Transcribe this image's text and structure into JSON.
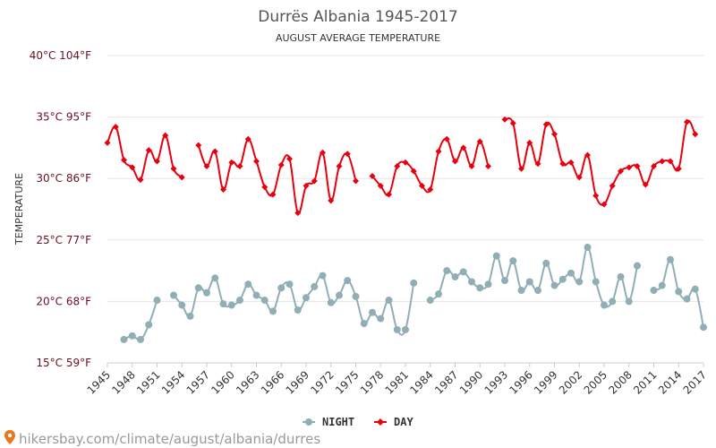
{
  "chart_data": {
    "type": "line",
    "title": "Durrës Albania 1945-2017",
    "subtitle": "AUGUST AVERAGE TEMPERATURE",
    "ylabel": "TEMPERATURE",
    "ylim": [
      15,
      40
    ],
    "y_ticks": [
      {
        "value": 15,
        "label": "15°C 59°F"
      },
      {
        "value": 20,
        "label": "20°C 68°F"
      },
      {
        "value": 25,
        "label": "25°C 77°F"
      },
      {
        "value": 30,
        "label": "30°C 86°F"
      },
      {
        "value": 35,
        "label": "35°C 95°F"
      },
      {
        "value": 40,
        "label": "40°C 104°F"
      }
    ],
    "x_range": [
      1945,
      2017
    ],
    "x_ticks": [
      1945,
      1948,
      1951,
      1954,
      1957,
      1960,
      1963,
      1966,
      1969,
      1972,
      1975,
      1978,
      1981,
      1984,
      1987,
      1990,
      1993,
      1996,
      1999,
      2002,
      2005,
      2008,
      2011,
      2014,
      2017
    ],
    "grid": true,
    "legend_position": "bottom",
    "series": [
      {
        "name": "NIGHT",
        "color": "#90aeb5",
        "marker": "circle",
        "points": [
          [
            1947,
            16.9
          ],
          [
            1948,
            17.2
          ],
          [
            1949,
            16.9
          ],
          [
            1950,
            18.1
          ],
          [
            1951,
            20.1
          ],
          [
            1953,
            20.5
          ],
          [
            1954,
            19.7
          ],
          [
            1955,
            18.8
          ],
          [
            1956,
            21.1
          ],
          [
            1957,
            20.7
          ],
          [
            1958,
            21.9
          ],
          [
            1959,
            19.8
          ],
          [
            1960,
            19.7
          ],
          [
            1961,
            20.1
          ],
          [
            1962,
            21.4
          ],
          [
            1963,
            20.5
          ],
          [
            1964,
            20.1
          ],
          [
            1965,
            19.2
          ],
          [
            1966,
            21.1
          ],
          [
            1967,
            21.4
          ],
          [
            1968,
            19.3
          ],
          [
            1969,
            20.3
          ],
          [
            1970,
            21.2
          ],
          [
            1971,
            22.1
          ],
          [
            1972,
            19.9
          ],
          [
            1973,
            20.5
          ],
          [
            1974,
            21.7
          ],
          [
            1975,
            20.4
          ],
          [
            1976,
            18.2
          ],
          [
            1977,
            19.1
          ],
          [
            1978,
            18.6
          ],
          [
            1979,
            20.1
          ],
          [
            1980,
            17.7
          ],
          [
            1981,
            17.7
          ],
          [
            1982,
            21.5
          ],
          [
            1984,
            20.1
          ],
          [
            1985,
            20.6
          ],
          [
            1986,
            22.5
          ],
          [
            1987,
            22.0
          ],
          [
            1988,
            22.4
          ],
          [
            1989,
            21.6
          ],
          [
            1990,
            21.1
          ],
          [
            1991,
            21.4
          ],
          [
            1992,
            23.7
          ],
          [
            1993,
            21.7
          ],
          [
            1994,
            23.3
          ],
          [
            1995,
            20.9
          ],
          [
            1996,
            21.6
          ],
          [
            1997,
            20.9
          ],
          [
            1998,
            23.1
          ],
          [
            1999,
            21.3
          ],
          [
            2000,
            21.8
          ],
          [
            2001,
            22.3
          ],
          [
            2002,
            21.6
          ],
          [
            2003,
            24.4
          ],
          [
            2004,
            21.6
          ],
          [
            2005,
            19.7
          ],
          [
            2006,
            20.0
          ],
          [
            2007,
            22.0
          ],
          [
            2008,
            20.0
          ],
          [
            2009,
            22.9
          ],
          [
            2011,
            20.9
          ],
          [
            2012,
            21.3
          ],
          [
            2013,
            23.4
          ],
          [
            2014,
            20.8
          ],
          [
            2015,
            20.2
          ],
          [
            2016,
            21.0
          ],
          [
            2017,
            17.9
          ]
        ]
      },
      {
        "name": "DAY",
        "color": "#e8000f",
        "marker": "diamond",
        "points": [
          [
            1945,
            32.9
          ],
          [
            1946,
            34.2
          ],
          [
            1947,
            31.5
          ],
          [
            1948,
            30.9
          ],
          [
            1949,
            29.9
          ],
          [
            1950,
            32.3
          ],
          [
            1951,
            31.4
          ],
          [
            1952,
            33.5
          ],
          [
            1953,
            30.8
          ],
          [
            1954,
            30.1
          ],
          [
            1956,
            32.7
          ],
          [
            1957,
            31.0
          ],
          [
            1958,
            32.2
          ],
          [
            1959,
            29.1
          ],
          [
            1960,
            31.3
          ],
          [
            1961,
            31.0
          ],
          [
            1962,
            33.2
          ],
          [
            1963,
            31.4
          ],
          [
            1964,
            29.3
          ],
          [
            1965,
            28.7
          ],
          [
            1966,
            31.1
          ],
          [
            1967,
            31.6
          ],
          [
            1968,
            27.2
          ],
          [
            1969,
            29.4
          ],
          [
            1970,
            29.8
          ],
          [
            1971,
            32.1
          ],
          [
            1972,
            28.2
          ],
          [
            1973,
            31.0
          ],
          [
            1974,
            32.0
          ],
          [
            1975,
            29.8
          ],
          [
            1977,
            30.2
          ],
          [
            1978,
            29.4
          ],
          [
            1979,
            28.7
          ],
          [
            1980,
            31.0
          ],
          [
            1981,
            31.3
          ],
          [
            1982,
            30.6
          ],
          [
            1983,
            29.4
          ],
          [
            1984,
            29.1
          ],
          [
            1985,
            32.2
          ],
          [
            1986,
            33.2
          ],
          [
            1987,
            31.4
          ],
          [
            1988,
            32.5
          ],
          [
            1989,
            31.0
          ],
          [
            1990,
            33.0
          ],
          [
            1991,
            31.0
          ],
          [
            1993,
            34.8
          ],
          [
            1994,
            34.5
          ],
          [
            1995,
            30.8
          ],
          [
            1996,
            32.9
          ],
          [
            1997,
            31.2
          ],
          [
            1998,
            34.4
          ],
          [
            1999,
            33.6
          ],
          [
            2000,
            31.2
          ],
          [
            2001,
            31.3
          ],
          [
            2002,
            30.1
          ],
          [
            2003,
            31.9
          ],
          [
            2004,
            28.6
          ],
          [
            2005,
            27.9
          ],
          [
            2006,
            29.4
          ],
          [
            2007,
            30.6
          ],
          [
            2008,
            30.9
          ],
          [
            2009,
            31.0
          ],
          [
            2010,
            29.5
          ],
          [
            2011,
            31.0
          ],
          [
            2012,
            31.4
          ],
          [
            2013,
            31.4
          ],
          [
            2014,
            30.8
          ],
          [
            2015,
            34.6
          ],
          [
            2016,
            33.6
          ]
        ]
      }
    ]
  },
  "footer": {
    "source_text": "hikersbay.com/climate/august/albania/durres"
  }
}
